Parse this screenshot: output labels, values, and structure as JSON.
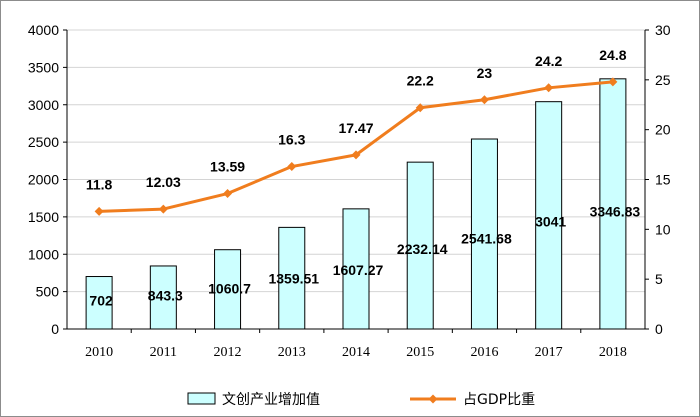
{
  "chart_data": {
    "type": "bar",
    "categories": [
      "2010",
      "2011",
      "2012",
      "2013",
      "2014",
      "2015",
      "2016",
      "2017",
      "2018"
    ],
    "series": [
      {
        "name": "文创产业增加值",
        "type": "bar",
        "axis": "left",
        "values": [
          702,
          843.3,
          1060.7,
          1359.51,
          1607.27,
          2232.14,
          2541.68,
          3041,
          3346.83
        ],
        "labels": [
          "702",
          "843.3",
          "1060.7",
          "1359.51",
          "1607.27",
          "2232.14",
          "2541.68",
          "3041",
          "3346.83"
        ],
        "color": "#ccffff",
        "stroke": "#000000"
      },
      {
        "name": "占GDP比重",
        "type": "line",
        "axis": "right",
        "values": [
          11.8,
          12.03,
          13.59,
          16.3,
          17.47,
          22.2,
          23,
          24.2,
          24.8
        ],
        "labels": [
          "11.8",
          "12.03",
          "13.59",
          "16.3",
          "17.47",
          "22.2",
          "23",
          "24.2",
          "24.8"
        ],
        "color": "#f07d1e"
      }
    ],
    "y_left": {
      "min": 0,
      "max": 4000,
      "step": 500,
      "ticks": [
        "0",
        "500",
        "1000",
        "1500",
        "2000",
        "2500",
        "3000",
        "3500",
        "4000"
      ]
    },
    "y_right": {
      "min": 0,
      "max": 30,
      "step": 5,
      "ticks": [
        "0",
        "5",
        "10",
        "15",
        "20",
        "25",
        "30"
      ]
    },
    "grid": true,
    "legend_position": "bottom"
  }
}
